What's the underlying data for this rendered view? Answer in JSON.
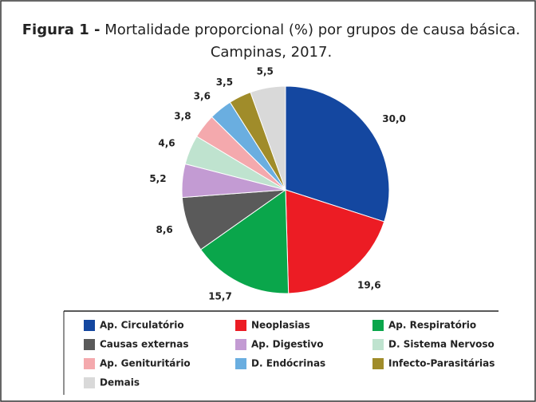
{
  "chart_data": {
    "type": "pie",
    "figure_label": "Figura 1 -",
    "title": "Mortalidade proporcional (%) por grupos de causa básica. Campinas, 2017.",
    "categories": [
      "Ap. Circulatório",
      "Neoplasias",
      "Ap. Respiratório",
      "Causas externas",
      "Ap. Digestivo",
      "D. Sistema Nervoso",
      "Ap. Genituritário",
      "D. Endócrinas",
      "Infecto-Parasitárias",
      "Demais"
    ],
    "values": [
      30.0,
      19.6,
      15.7,
      8.6,
      5.2,
      4.6,
      3.8,
      3.6,
      3.5,
      5.5
    ],
    "value_labels": [
      "30,0",
      "19,6",
      "15,7",
      "8,6",
      "5,2",
      "4,6",
      "3,8",
      "3,6",
      "3,5",
      "5,5"
    ],
    "colors": [
      "#1447a0",
      "#ec1c24",
      "#0aa64b",
      "#5a5a5a",
      "#c39bd3",
      "#bfe3cf",
      "#f4a9ad",
      "#6aaee0",
      "#a08c2a",
      "#d9d9d9"
    ]
  }
}
